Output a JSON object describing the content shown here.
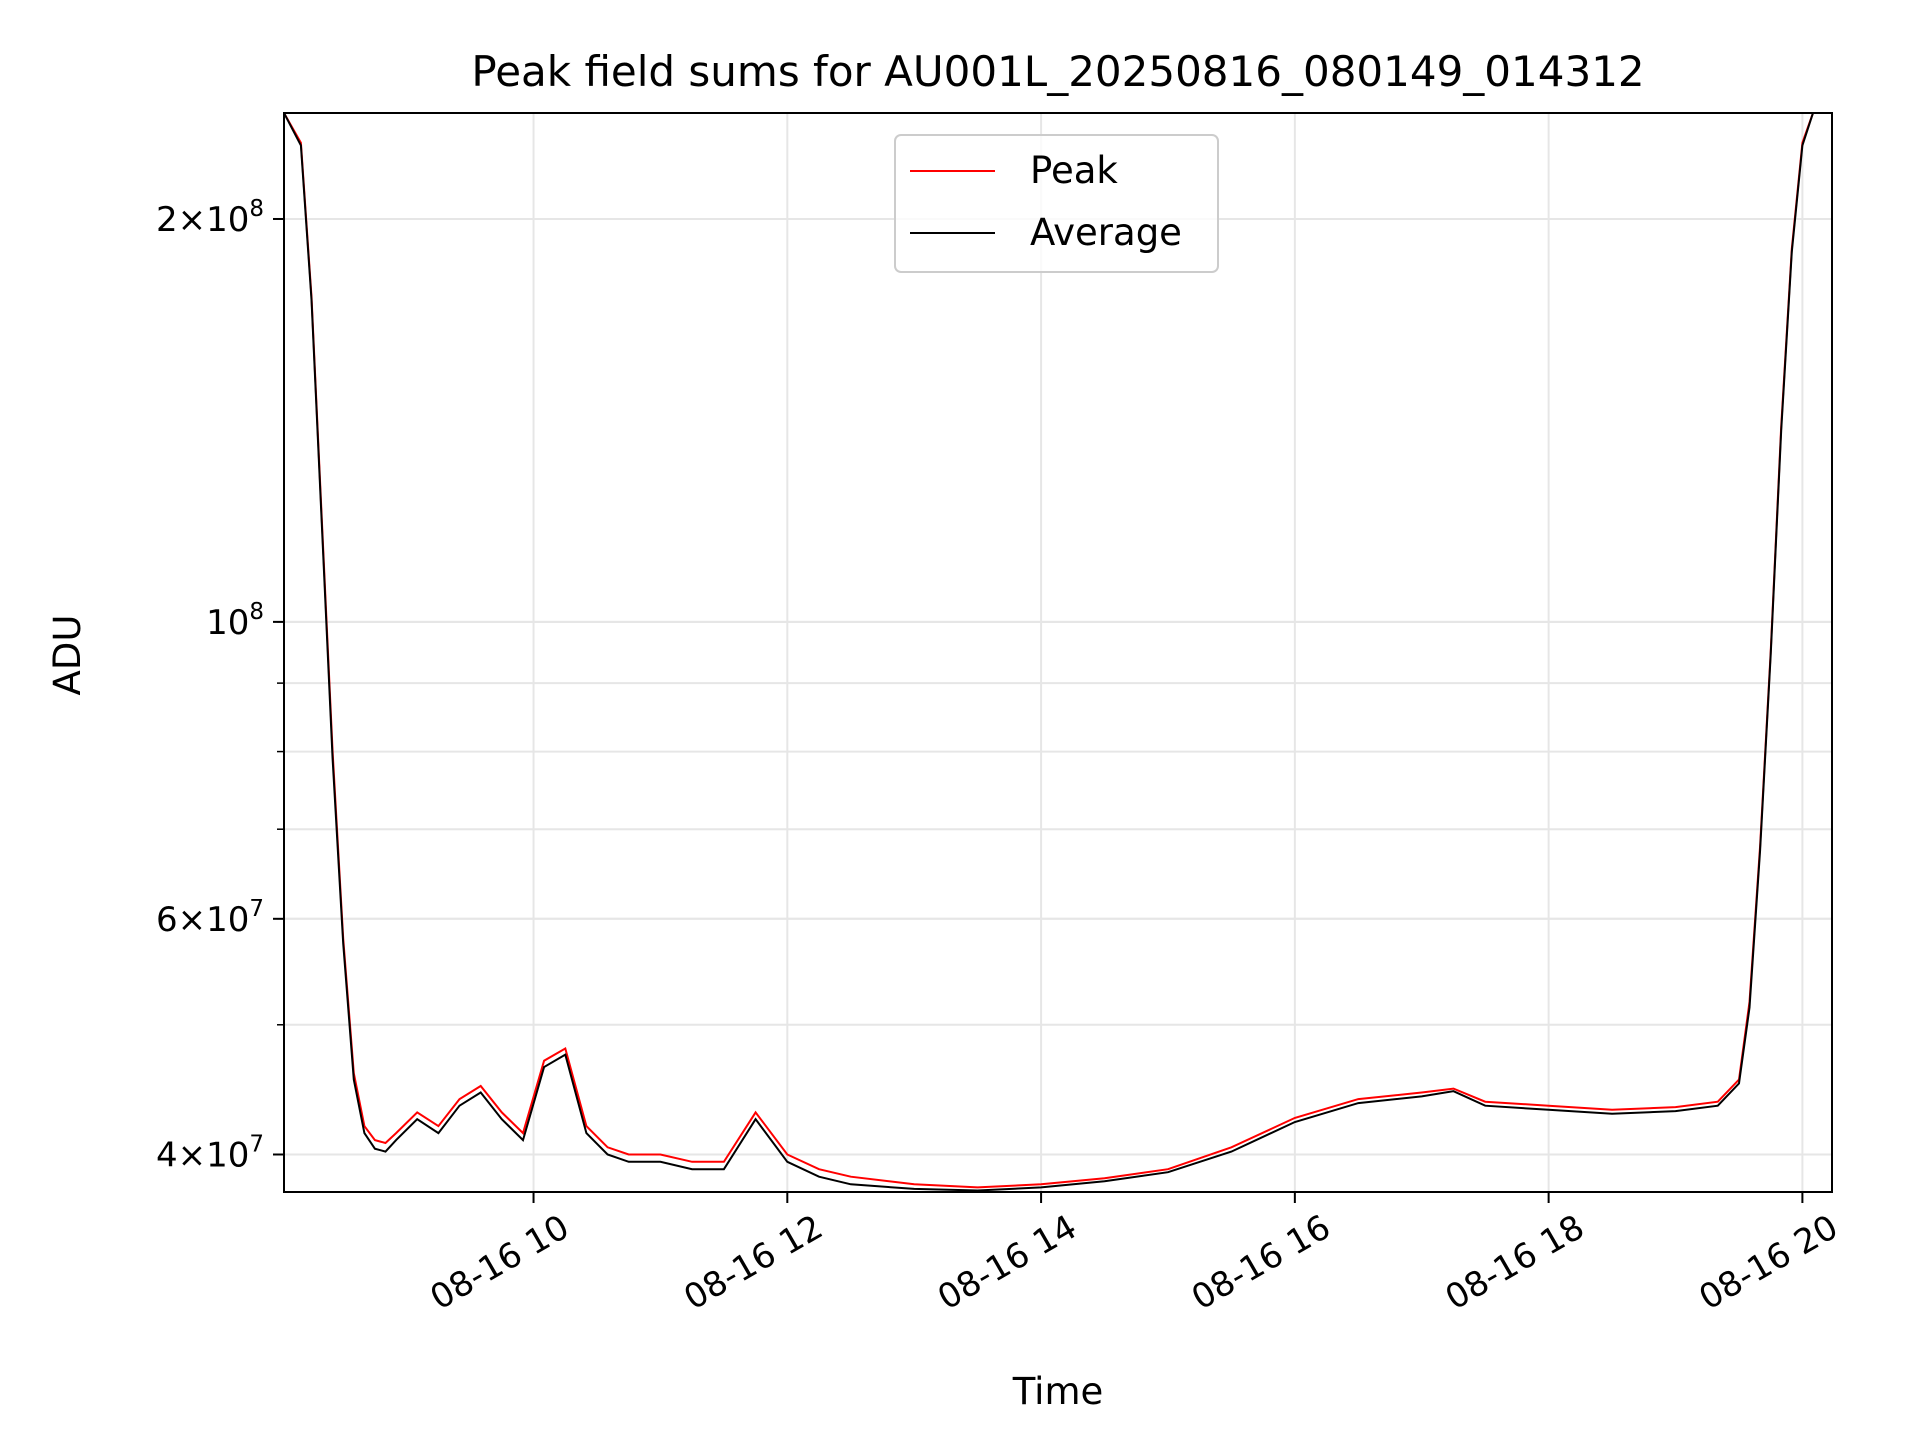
{
  "chart_data": {
    "type": "line",
    "title": "Peak field sums for AU001L_20250816_080149_014312",
    "xlabel": "Time",
    "ylabel": "ADU",
    "xscale": "time",
    "yscale": "log",
    "xlim": [
      "2025-08-16 08:02",
      "2025-08-16 20:14"
    ],
    "ylim": [
      37500000,
      240000000
    ],
    "grid": true,
    "legend_position": "top-center",
    "x_ticks": [
      {
        "x": "2025-08-16 10:00",
        "label": "08-16 10"
      },
      {
        "x": "2025-08-16 12:00",
        "label": "08-16 12"
      },
      {
        "x": "2025-08-16 14:00",
        "label": "08-16 14"
      },
      {
        "x": "2025-08-16 16:00",
        "label": "08-16 16"
      },
      {
        "x": "2025-08-16 18:00",
        "label": "08-16 18"
      },
      {
        "x": "2025-08-16 20:00",
        "label": "08-16 20"
      }
    ],
    "y_ticks": [
      {
        "y": 40000000,
        "mant": "4",
        "exp": "7"
      },
      {
        "y": 60000000,
        "mant": "6",
        "exp": "7"
      },
      {
        "y": 100000000,
        "mant": "",
        "exp": "8"
      },
      {
        "y": 200000000,
        "mant": "2",
        "exp": "8"
      }
    ],
    "series": [
      {
        "name": "Peak",
        "color": "#ff0000",
        "x": [
          "2025-08-16 08:02",
          "2025-08-16 08:10",
          "2025-08-16 08:15",
          "2025-08-16 08:20",
          "2025-08-16 08:25",
          "2025-08-16 08:30",
          "2025-08-16 08:35",
          "2025-08-16 08:40",
          "2025-08-16 08:45",
          "2025-08-16 08:50",
          "2025-08-16 08:55",
          "2025-08-16 09:05",
          "2025-08-16 09:15",
          "2025-08-16 09:25",
          "2025-08-16 09:35",
          "2025-08-16 09:45",
          "2025-08-16 09:55",
          "2025-08-16 10:05",
          "2025-08-16 10:15",
          "2025-08-16 10:25",
          "2025-08-16 10:35",
          "2025-08-16 10:45",
          "2025-08-16 11:00",
          "2025-08-16 11:15",
          "2025-08-16 11:30",
          "2025-08-16 11:45",
          "2025-08-16 12:00",
          "2025-08-16 12:15",
          "2025-08-16 12:30",
          "2025-08-16 13:00",
          "2025-08-16 13:30",
          "2025-08-16 14:00",
          "2025-08-16 14:30",
          "2025-08-16 15:00",
          "2025-08-16 15:30",
          "2025-08-16 16:00",
          "2025-08-16 16:30",
          "2025-08-16 17:00",
          "2025-08-16 17:15",
          "2025-08-16 17:30",
          "2025-08-16 18:00",
          "2025-08-16 18:30",
          "2025-08-16 19:00",
          "2025-08-16 19:20",
          "2025-08-16 19:30",
          "2025-08-16 19:35",
          "2025-08-16 19:40",
          "2025-08-16 19:45",
          "2025-08-16 19:50",
          "2025-08-16 19:55",
          "2025-08-16 20:00",
          "2025-08-16 20:05",
          "2025-08-16 20:14"
        ],
        "y": [
          240000000,
          228000000,
          175000000,
          118000000,
          80000000,
          58000000,
          46000000,
          42000000,
          41000000,
          40800000,
          41500000,
          43000000,
          42000000,
          44000000,
          45000000,
          43000000,
          41500000,
          47000000,
          48000000,
          42000000,
          40500000,
          40000000,
          40000000,
          39500000,
          39500000,
          43000000,
          40000000,
          39000000,
          38500000,
          38000000,
          37800000,
          38000000,
          38400000,
          39000000,
          40500000,
          42600000,
          44000000,
          44500000,
          44800000,
          43800000,
          43500000,
          43200000,
          43400000,
          43800000,
          45500000,
          52000000,
          68000000,
          95000000,
          140000000,
          190000000,
          228000000,
          240000000,
          240000000
        ]
      },
      {
        "name": "Average",
        "color": "#000000",
        "x": [
          "2025-08-16 08:02",
          "2025-08-16 08:10",
          "2025-08-16 08:15",
          "2025-08-16 08:20",
          "2025-08-16 08:25",
          "2025-08-16 08:30",
          "2025-08-16 08:35",
          "2025-08-16 08:40",
          "2025-08-16 08:45",
          "2025-08-16 08:50",
          "2025-08-16 08:55",
          "2025-08-16 09:05",
          "2025-08-16 09:15",
          "2025-08-16 09:25",
          "2025-08-16 09:35",
          "2025-08-16 09:45",
          "2025-08-16 09:55",
          "2025-08-16 10:05",
          "2025-08-16 10:15",
          "2025-08-16 10:25",
          "2025-08-16 10:35",
          "2025-08-16 10:45",
          "2025-08-16 11:00",
          "2025-08-16 11:15",
          "2025-08-16 11:30",
          "2025-08-16 11:45",
          "2025-08-16 12:00",
          "2025-08-16 12:15",
          "2025-08-16 12:30",
          "2025-08-16 13:00",
          "2025-08-16 13:30",
          "2025-08-16 14:00",
          "2025-08-16 14:30",
          "2025-08-16 15:00",
          "2025-08-16 15:30",
          "2025-08-16 16:00",
          "2025-08-16 16:30",
          "2025-08-16 17:00",
          "2025-08-16 17:15",
          "2025-08-16 17:30",
          "2025-08-16 18:00",
          "2025-08-16 18:30",
          "2025-08-16 19:00",
          "2025-08-16 19:20",
          "2025-08-16 19:30",
          "2025-08-16 19:35",
          "2025-08-16 19:40",
          "2025-08-16 19:45",
          "2025-08-16 19:50",
          "2025-08-16 19:55",
          "2025-08-16 20:00",
          "2025-08-16 20:05",
          "2025-08-16 20:14"
        ],
        "y": [
          240000000,
          227000000,
          174000000,
          117000000,
          79000000,
          57500000,
          45500000,
          41500000,
          40400000,
          40200000,
          41000000,
          42500000,
          41500000,
          43500000,
          44500000,
          42500000,
          41000000,
          46500000,
          47500000,
          41500000,
          40000000,
          39500000,
          39500000,
          39000000,
          39000000,
          42500000,
          39500000,
          38500000,
          38000000,
          37700000,
          37600000,
          37800000,
          38200000,
          38800000,
          40200000,
          42300000,
          43700000,
          44200000,
          44600000,
          43500000,
          43200000,
          42900000,
          43100000,
          43500000,
          45200000,
          51500000,
          67500000,
          94500000,
          139000000,
          189000000,
          227000000,
          240000000,
          240000000
        ]
      }
    ]
  }
}
